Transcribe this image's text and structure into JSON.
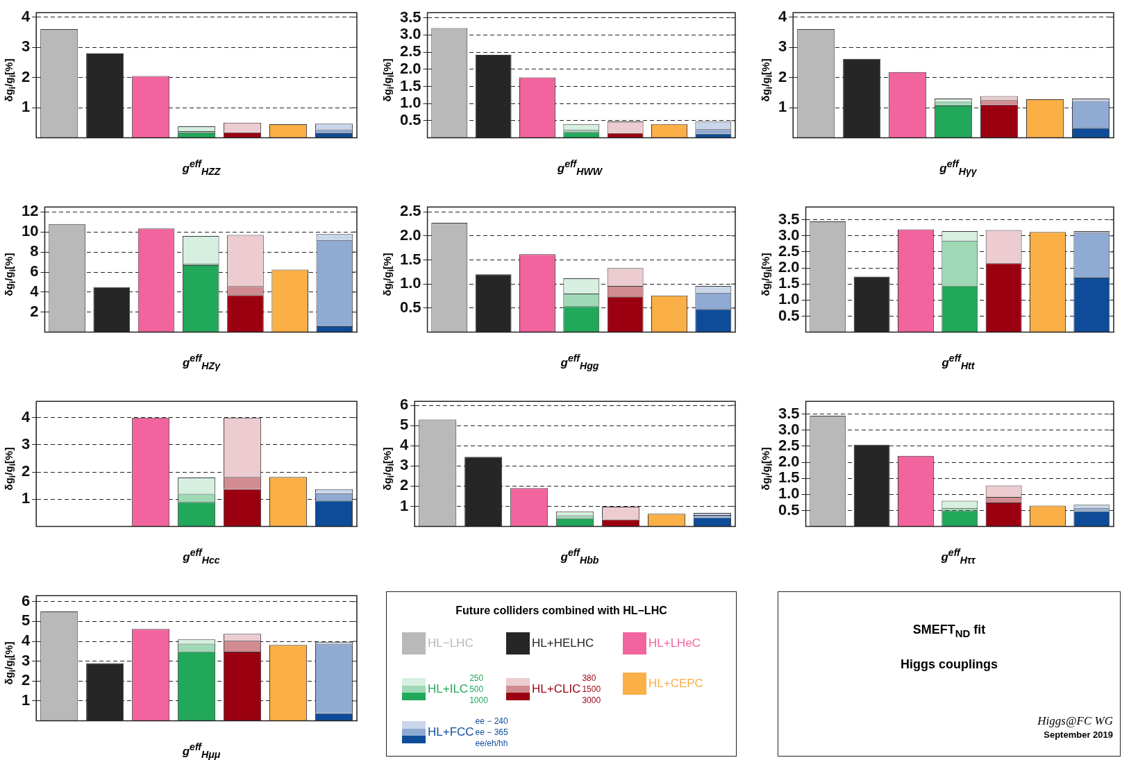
{
  "chart_data": [
    {
      "type": "bar",
      "xlabel": "g$^{eff}$$_{HZZ}$",
      "ylabel": "δg$_{i}$/g$_{i}$[%]",
      "stacked": true,
      "grid": "y",
      "legend": false,
      "categories": [
        null,
        null,
        null,
        null,
        null,
        null,
        null
      ],
      "ylim": [
        0,
        4.15
      ],
      "yticks": [
        1,
        2,
        3,
        4
      ],
      "series": [
        {
          "colors": [
            "#b9b9b9",
            "#262626",
            "#f2649e",
            "#22a85a",
            "#9b0010",
            "#fbaf47",
            "#0e4c9a"
          ],
          "values": [
            3.6,
            2.8,
            2.05,
            0.18,
            0.18,
            0.45,
            0.15
          ]
        },
        {
          "colors": [
            null,
            null,
            null,
            "#9fd9b6",
            null,
            null,
            "#8faad3"
          ],
          "values": [
            null,
            null,
            null,
            0.04,
            null,
            null,
            0.13
          ]
        },
        {
          "colors": [
            null,
            null,
            null,
            "#d6efe0",
            "#ecccd0",
            null,
            "#c9d6ea"
          ],
          "values": [
            null,
            null,
            null,
            0.16,
            0.32,
            null,
            0.19
          ]
        }
      ]
    },
    {
      "type": "bar",
      "xlabel": "g$^{eff}$$_{HWW}$",
      "ylabel": "δg$_{i}$/g$_{i}$[%]",
      "stacked": true,
      "grid": "y",
      "legend": false,
      "categories": [
        null,
        null,
        null,
        null,
        null,
        null,
        null
      ],
      "ylim": [
        0,
        3.65
      ],
      "yticks": [
        0.5,
        {
          "value": 1,
          "label": "1.0"
        },
        1.5,
        {
          "value": 2,
          "label": "2.0"
        },
        2.5,
        {
          "value": 3,
          "label": "3.0"
        },
        3.5
      ],
      "series": [
        {
          "colors": [
            "#b9b9b9",
            "#262626",
            "#f2649e",
            "#22a85a",
            "#9b0010",
            "#fbaf47",
            "#0e4c9a"
          ],
          "values": [
            3.2,
            2.42,
            1.76,
            0.17,
            0.14,
            0.4,
            0.12
          ]
        },
        {
          "colors": [
            null,
            null,
            null,
            "#9fd9b6",
            null,
            null,
            "#8faad3"
          ],
          "values": [
            null,
            null,
            null,
            0.06,
            null,
            null,
            0.13
          ]
        },
        {
          "colors": [
            null,
            null,
            null,
            "#d6efe0",
            "#ecccd0",
            null,
            "#c9d6ea"
          ],
          "values": [
            null,
            null,
            null,
            0.17,
            0.34,
            null,
            0.22
          ]
        }
      ]
    },
    {
      "type": "bar",
      "xlabel": "g$^{eff}$$_{Hγγ}$",
      "ylabel": "δg$_{i}$/g$_{i}$[%]",
      "stacked": true,
      "grid": "y",
      "legend": false,
      "categories": [
        null,
        null,
        null,
        null,
        null,
        null,
        null
      ],
      "ylim": [
        0,
        4.15
      ],
      "yticks": [
        1,
        2,
        3,
        4
      ],
      "series": [
        {
          "colors": [
            "#b9b9b9",
            "#262626",
            "#f2649e",
            "#22a85a",
            "#9b0010",
            "#fbaf47",
            "#0e4c9a"
          ],
          "values": [
            3.6,
            2.62,
            2.18,
            1.07,
            1.1,
            1.28,
            0.33
          ]
        },
        {
          "colors": [
            null,
            null,
            null,
            "#9fd9b6",
            "#d08c90",
            null,
            "#8faad3"
          ],
          "values": [
            null,
            null,
            null,
            0.13,
            0.15,
            null,
            0.89
          ]
        },
        {
          "colors": [
            null,
            null,
            null,
            "#d6efe0",
            "#ecccd0",
            null,
            "#c9d6ea"
          ],
          "values": [
            null,
            null,
            null,
            0.1,
            0.13,
            null,
            0.08
          ]
        }
      ]
    },
    {
      "type": "bar",
      "xlabel": "g$^{eff}$$_{HZγ}$",
      "ylabel": "δg$_{i}$/g$_{i}$[%]",
      "stacked": true,
      "grid": "y",
      "legend": false,
      "categories": [
        null,
        null,
        null,
        null,
        null,
        null,
        null
      ],
      "ylim": [
        0,
        12.5
      ],
      "yticks": [
        2,
        4,
        6,
        8,
        10,
        12
      ],
      "series": [
        {
          "colors": [
            "#b9b9b9",
            "#262626",
            "#f2649e",
            "#22a85a",
            "#9b0010",
            "#fbaf47",
            "#0e4c9a"
          ],
          "values": [
            10.8,
            4.5,
            10.35,
            6.7,
            3.7,
            6.25,
            0.6
          ]
        },
        {
          "colors": [
            null,
            null,
            null,
            "#9fd9b6",
            "#d08c90",
            null,
            "#8faad3"
          ],
          "values": [
            null,
            null,
            null,
            0.15,
            0.9,
            null,
            8.6
          ]
        },
        {
          "colors": [
            null,
            null,
            null,
            "#d6efe0",
            "#ecccd0",
            null,
            "#c9d6ea"
          ],
          "values": [
            null,
            null,
            null,
            2.75,
            5.1,
            null,
            0.6
          ]
        }
      ]
    },
    {
      "type": "bar",
      "xlabel": "g$^{eff}$$_{Hgg}$",
      "ylabel": "δg$_{i}$/g$_{i}$[%]",
      "stacked": true,
      "grid": "y",
      "legend": false,
      "categories": [
        null,
        null,
        null,
        null,
        null,
        null,
        null
      ],
      "ylim": [
        0,
        2.6
      ],
      "yticks": [
        0.5,
        {
          "value": 1,
          "label": "1.0"
        },
        1.5,
        {
          "value": 2,
          "label": "2.0"
        },
        2.5
      ],
      "series": [
        {
          "colors": [
            "#b9b9b9",
            "#262626",
            "#f2649e",
            "#22a85a",
            "#9b0010",
            "#fbaf47",
            "#0e4c9a"
          ],
          "values": [
            2.27,
            1.2,
            1.62,
            0.54,
            0.74,
            0.76,
            0.48
          ]
        },
        {
          "colors": [
            null,
            null,
            null,
            "#9fd9b6",
            "#d08c90",
            null,
            "#8faad3"
          ],
          "values": [
            null,
            null,
            null,
            0.26,
            0.22,
            null,
            0.34
          ]
        },
        {
          "colors": [
            null,
            null,
            null,
            "#d6efe0",
            "#ecccd0",
            null,
            "#c9d6ea"
          ],
          "values": [
            null,
            null,
            null,
            0.32,
            0.37,
            null,
            0.14
          ]
        }
      ]
    },
    {
      "type": "bar",
      "xlabel": "g$^{eff}$$_{Htt}$",
      "ylabel": "δg$_{i}$/g$_{i}$[%]",
      "stacked": true,
      "grid": "y",
      "legend": false,
      "categories": [
        null,
        null,
        null,
        null,
        null,
        null,
        null
      ],
      "ylim": [
        0,
        3.9
      ],
      "yticks": [
        0.5,
        {
          "value": 1,
          "label": "1.0"
        },
        1.5,
        {
          "value": 2,
          "label": "2.0"
        },
        2.5,
        {
          "value": 3,
          "label": "3.0"
        },
        3.5
      ],
      "series": [
        {
          "colors": [
            "#b9b9b9",
            "#262626",
            "#f2649e",
            "#22a85a",
            "#9b0010",
            "#fbaf47",
            "#0e4c9a"
          ],
          "values": [
            3.45,
            1.73,
            3.2,
            1.45,
            2.15,
            3.12,
            1.7
          ]
        },
        {
          "colors": [
            null,
            null,
            null,
            "#9fd9b6",
            null,
            null,
            "#8faad3"
          ],
          "values": [
            null,
            null,
            null,
            1.4,
            null,
            null,
            1.4
          ]
        },
        {
          "colors": [
            null,
            null,
            null,
            "#d6efe0",
            "#ecccd0",
            null,
            "#c9d6ea"
          ],
          "values": [
            null,
            null,
            null,
            0.3,
            1.03,
            null,
            0.05
          ]
        }
      ]
    },
    {
      "type": "bar",
      "xlabel": "g$^{eff}$$_{Hcc}$",
      "ylabel": "δg$_{i}$/g$_{i}$[%]",
      "stacked": true,
      "grid": "y",
      "legend": false,
      "categories": [
        null,
        null,
        null,
        null,
        null,
        null,
        null
      ],
      "ylim": [
        0,
        4.6
      ],
      "yticks": [
        1,
        2,
        3,
        4
      ],
      "series": [
        {
          "colors": [
            null,
            null,
            "#f2649e",
            "#22a85a",
            "#9b0010",
            "#fbaf47",
            "#0e4c9a"
          ],
          "values": [
            null,
            null,
            4.0,
            0.9,
            1.38,
            1.82,
            0.95
          ]
        },
        {
          "colors": [
            null,
            null,
            null,
            "#9fd9b6",
            "#d08c90",
            null,
            "#8faad3"
          ],
          "values": [
            null,
            null,
            null,
            0.3,
            0.44,
            null,
            0.27
          ]
        },
        {
          "colors": [
            null,
            null,
            null,
            "#d6efe0",
            "#ecccd0",
            null,
            "#c9d6ea"
          ],
          "values": [
            null,
            null,
            null,
            0.6,
            2.18,
            null,
            0.15
          ]
        }
      ]
    },
    {
      "type": "bar",
      "xlabel": "g$^{eff}$$_{Hbb}$",
      "ylabel": "δg$_{i}$/g$_{i}$[%]",
      "stacked": true,
      "grid": "y",
      "legend": false,
      "categories": [
        null,
        null,
        null,
        null,
        null,
        null,
        null
      ],
      "ylim": [
        0,
        6.2
      ],
      "yticks": [
        1,
        2,
        3,
        4,
        5,
        6
      ],
      "series": [
        {
          "colors": [
            "#b9b9b9",
            "#262626",
            "#f2649e",
            "#22a85a",
            "#9b0010",
            "#fbaf47",
            "#0e4c9a"
          ],
          "values": [
            5.3,
            3.45,
            1.9,
            0.42,
            0.35,
            0.63,
            0.45
          ]
        },
        {
          "colors": [
            null,
            null,
            null,
            "#9fd9b6",
            null,
            null,
            "#8faad3"
          ],
          "values": [
            null,
            null,
            null,
            0.13,
            null,
            null,
            0.12
          ]
        },
        {
          "colors": [
            null,
            null,
            null,
            "#d6efe0",
            "#ecccd0",
            null,
            "#c9d6ea"
          ],
          "values": [
            null,
            null,
            null,
            0.2,
            0.63,
            null,
            0.1
          ]
        }
      ]
    },
    {
      "type": "bar",
      "xlabel": "g$^{eff}$$_{Hττ}$",
      "ylabel": "δg$_{i}$/g$_{i}$[%]",
      "stacked": true,
      "grid": "y",
      "legend": false,
      "categories": [
        null,
        null,
        null,
        null,
        null,
        null,
        null
      ],
      "ylim": [
        0,
        3.9
      ],
      "yticks": [
        0.5,
        {
          "value": 1,
          "label": "1.0"
        },
        1.5,
        {
          "value": 2,
          "label": "2.0"
        },
        2.5,
        {
          "value": 3,
          "label": "3.0"
        },
        3.5
      ],
      "series": [
        {
          "colors": [
            "#b9b9b9",
            "#262626",
            "#f2649e",
            "#22a85a",
            "#9b0010",
            "#fbaf47",
            "#0e4c9a"
          ],
          "values": [
            3.45,
            2.55,
            2.2,
            0.5,
            0.75,
            0.65,
            0.47
          ]
        },
        {
          "colors": [
            null,
            null,
            null,
            "#9fd9b6",
            "#d08c90",
            null,
            "#8faad3"
          ],
          "values": [
            null,
            null,
            null,
            0.08,
            0.17,
            null,
            0.1
          ]
        },
        {
          "colors": [
            null,
            null,
            null,
            "#d6efe0",
            "#ecccd0",
            null,
            "#c9d6ea"
          ],
          "values": [
            null,
            null,
            null,
            0.22,
            0.36,
            null,
            0.11
          ]
        }
      ]
    },
    {
      "type": "bar",
      "xlabel": "g$^{eff}$$_{Hμμ}$",
      "ylabel": "δg$_{i}$/g$_{i}$[%]",
      "stacked": true,
      "grid": "y",
      "legend": false,
      "categories": [
        null,
        null,
        null,
        null,
        null,
        null,
        null
      ],
      "ylim": [
        0,
        6.3
      ],
      "yticks": [
        1,
        2,
        3,
        4,
        5,
        6
      ],
      "series": [
        {
          "colors": [
            "#b9b9b9",
            "#262626",
            "#f2649e",
            "#22a85a",
            "#9b0010",
            "#fbaf47",
            "#0e4c9a"
          ],
          "values": [
            5.5,
            2.9,
            4.62,
            3.5,
            3.48,
            3.82,
            0.38
          ]
        },
        {
          "colors": [
            null,
            null,
            null,
            "#9fd9b6",
            "#d08c90",
            null,
            "#8faad3"
          ],
          "values": [
            null,
            null,
            null,
            0.38,
            0.57,
            null,
            3.47
          ]
        },
        {
          "colors": [
            null,
            null,
            null,
            "#d6efe0",
            "#ecccd0",
            null,
            "#c9d6ea"
          ],
          "values": [
            null,
            null,
            null,
            0.22,
            0.33,
            null,
            0.13
          ]
        }
      ]
    },
    {
      "type": "other",
      "title": "Future colliders combined with HL−LHC",
      "annotations": [
        "HL−LHC",
        "HL+HELHC",
        "HL+LHeC",
        "HL+ILC",
        "HL+CLIC",
        "HL+CEPC",
        "HL+FCC",
        "250",
        "500",
        "1000",
        "380",
        "1500",
        "3000",
        "ee − 240",
        "ee − 365",
        "ee/eh/hh"
      ],
      "colors": [
        "#b9b9b9",
        "#262626",
        "#f2649e",
        [
          "#d6efe0",
          "#9fd9b6",
          "#22a85a"
        ],
        [
          "#ecccd0",
          "#d08c90",
          "#9b0010"
        ],
        "#fbaf47",
        [
          "#c9d6ea",
          "#8faad3",
          "#0e4c9a"
        ]
      ]
    },
    {
      "type": "other",
      "title": "SMEFT$_{ND}$ fit",
      "subtitle": "Higgs couplings",
      "annotations": [
        "Higgs@FC WG",
        "September 2019"
      ]
    }
  ]
}
